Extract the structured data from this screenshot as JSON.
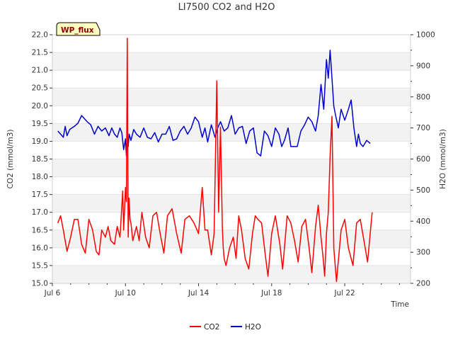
{
  "chart_data": {
    "type": "line",
    "title": "LI7500 CO2 and H2O",
    "site_label": "WP_flux",
    "xlabel": "Time",
    "ylabel_left": "CO2 (mmol/m3)",
    "ylabel_right": "H2O (mmol/m3)",
    "x_unit": "days since Jul 6",
    "xlim": [
      0,
      19.6
    ],
    "ylim_left": [
      15.0,
      22.0
    ],
    "ylim_right": [
      200,
      1000
    ],
    "left_ticks": [
      "15.0",
      "15.5",
      "16.0",
      "16.5",
      "17.0",
      "17.5",
      "18.0",
      "18.5",
      "19.0",
      "19.5",
      "20.0",
      "20.5",
      "21.0",
      "21.5",
      "22.0"
    ],
    "right_ticks": [
      "200",
      "300",
      "400",
      "500",
      "600",
      "700",
      "800",
      "900",
      "1000"
    ],
    "x_ticks": [
      {
        "value": 0,
        "label": "Jul 6"
      },
      {
        "value": 4,
        "label": "Jul 10"
      },
      {
        "value": 8,
        "label": "Jul 14"
      },
      {
        "value": 12,
        "label": "Jul 18"
      },
      {
        "value": 16,
        "label": "Jul 22"
      }
    ],
    "series": [
      {
        "name": "CO2",
        "axis": "left",
        "color": "#ff0000",
        "x": [
          0.3,
          0.45,
          0.6,
          0.8,
          1.0,
          1.2,
          1.4,
          1.6,
          1.8,
          2.0,
          2.2,
          2.4,
          2.55,
          2.7,
          2.9,
          3.05,
          3.2,
          3.4,
          3.55,
          3.7,
          3.85,
          3.9,
          4.0,
          4.05,
          4.1,
          4.15,
          4.2,
          4.25,
          4.3,
          4.4,
          4.5,
          4.6,
          4.75,
          4.9,
          5.1,
          5.3,
          5.5,
          5.7,
          5.9,
          6.1,
          6.3,
          6.55,
          6.8,
          7.05,
          7.25,
          7.5,
          7.75,
          8.0,
          8.2,
          8.35,
          8.5,
          8.7,
          8.85,
          9.0,
          9.1,
          9.2,
          9.3,
          9.35,
          9.4,
          9.5,
          9.7,
          9.9,
          10.05,
          10.2,
          10.35,
          10.55,
          10.75,
          10.95,
          11.1,
          11.25,
          11.45,
          11.65,
          11.8,
          12.0,
          12.2,
          12.45,
          12.6,
          12.85,
          13.05,
          13.25,
          13.45,
          13.65,
          13.85,
          14.05,
          14.2,
          14.4,
          14.55,
          14.7,
          14.8,
          14.9,
          15.0,
          15.1,
          15.2,
          15.3,
          15.4,
          15.55,
          15.8,
          16.0,
          16.2,
          16.45,
          16.65,
          16.85,
          17.05,
          17.25,
          17.5
        ],
        "values": [
          16.7,
          16.9,
          16.5,
          15.9,
          16.3,
          16.8,
          16.8,
          16.1,
          15.85,
          16.8,
          16.5,
          15.9,
          15.8,
          16.5,
          16.3,
          16.6,
          16.2,
          16.1,
          16.6,
          16.3,
          17.6,
          16.5,
          17.7,
          17.3,
          21.9,
          16.3,
          17.4,
          16.8,
          16.7,
          16.2,
          16.4,
          16.6,
          16.2,
          17.0,
          16.3,
          16.0,
          16.9,
          17.0,
          16.4,
          15.85,
          16.9,
          17.1,
          16.4,
          15.85,
          16.8,
          16.9,
          16.7,
          16.4,
          17.7,
          16.5,
          16.5,
          15.8,
          16.4,
          20.7,
          17.0,
          19.4,
          16.6,
          16.0,
          15.7,
          15.5,
          16.0,
          16.3,
          15.7,
          16.9,
          16.5,
          15.7,
          15.4,
          16.4,
          16.9,
          16.8,
          16.7,
          15.8,
          15.2,
          16.4,
          16.9,
          16.1,
          15.4,
          16.9,
          16.7,
          16.2,
          15.6,
          16.6,
          16.8,
          16.0,
          15.3,
          16.6,
          17.2,
          16.3,
          15.8,
          15.2,
          16.4,
          17.0,
          18.6,
          19.7,
          16.0,
          15.05,
          16.5,
          16.8,
          16.0,
          15.5,
          16.7,
          16.8,
          16.2,
          15.6,
          17.0
        ]
      },
      {
        "name": "H2O",
        "axis": "right",
        "color": "#0000cc",
        "x": [
          0.3,
          0.45,
          0.6,
          0.7,
          0.8,
          0.95,
          1.2,
          1.4,
          1.6,
          1.75,
          1.9,
          2.1,
          2.3,
          2.5,
          2.7,
          2.9,
          3.1,
          3.25,
          3.4,
          3.55,
          3.7,
          3.8,
          3.9,
          4.0,
          4.05,
          4.1,
          4.15,
          4.2,
          4.3,
          4.45,
          4.6,
          4.8,
          5.0,
          5.2,
          5.4,
          5.6,
          5.8,
          6.0,
          6.2,
          6.4,
          6.6,
          6.8,
          7.0,
          7.2,
          7.4,
          7.6,
          7.8,
          8.0,
          8.2,
          8.35,
          8.5,
          8.7,
          8.9,
          9.05,
          9.2,
          9.4,
          9.6,
          9.8,
          10.0,
          10.2,
          10.4,
          10.6,
          10.8,
          11.0,
          11.2,
          11.4,
          11.6,
          11.8,
          12.0,
          12.2,
          12.4,
          12.55,
          12.7,
          12.9,
          13.05,
          13.2,
          13.4,
          13.6,
          13.8,
          14.0,
          14.2,
          14.4,
          14.55,
          14.7,
          14.85,
          15.0,
          15.1,
          15.2,
          15.3,
          15.4,
          15.5,
          15.65,
          15.8,
          16.0,
          16.2,
          16.35,
          16.5,
          16.65,
          16.75,
          16.85,
          17.0,
          17.2,
          17.4
        ],
        "values": [
          690,
          680,
          670,
          705,
          675,
          695,
          705,
          715,
          740,
          730,
          720,
          710,
          680,
          705,
          690,
          700,
          675,
          700,
          680,
          670,
          700,
          685,
          630,
          665,
          610,
          670,
          640,
          680,
          660,
          695,
          680,
          670,
          700,
          670,
          665,
          685,
          655,
          680,
          680,
          705,
          660,
          665,
          690,
          705,
          680,
          700,
          735,
          720,
          670,
          700,
          655,
          710,
          670,
          700,
          720,
          690,
          700,
          740,
          680,
          700,
          705,
          650,
          690,
          700,
          620,
          610,
          690,
          675,
          640,
          700,
          680,
          640,
          660,
          700,
          640,
          640,
          640,
          690,
          710,
          735,
          720,
          690,
          740,
          840,
          760,
          920,
          860,
          950,
          860,
          770,
          740,
          700,
          760,
          725,
          760,
          790,
          700,
          640,
          680,
          650,
          640,
          660,
          650
        ]
      }
    ]
  }
}
